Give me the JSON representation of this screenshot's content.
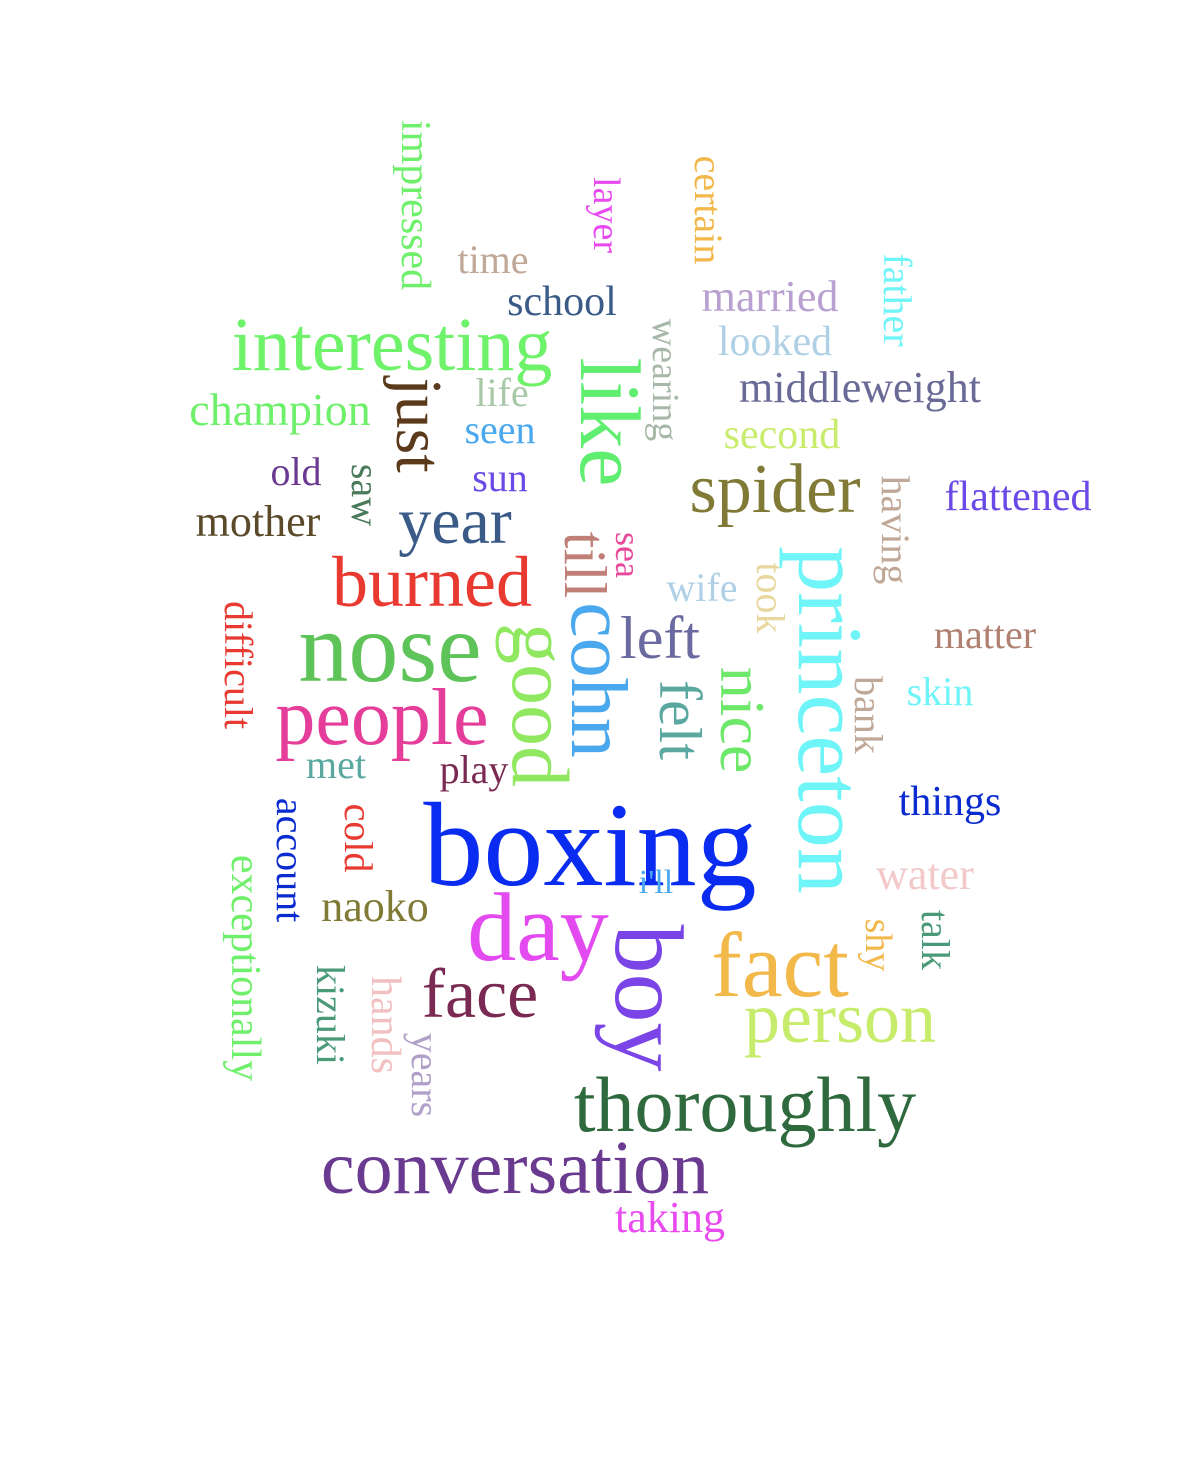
{
  "words": [
    {
      "text": "boxing",
      "color": "#0a2bf0"
    },
    {
      "text": "princeton",
      "color": "#6ff4f8"
    },
    {
      "text": "day",
      "color": "#e34af0"
    },
    {
      "text": "boy",
      "color": "#7a44e6"
    },
    {
      "text": "nose",
      "color": "#5ec45a"
    },
    {
      "text": "fact",
      "color": "#f2b84a"
    },
    {
      "text": "thoroughly",
      "color": "#2f6a3e"
    },
    {
      "text": "conversation",
      "color": "#6a3a90"
    },
    {
      "text": "person",
      "color": "#c7ec6b"
    },
    {
      "text": "people",
      "color": "#e43e9a"
    },
    {
      "text": "interesting",
      "color": "#6ef26a"
    },
    {
      "text": "like",
      "color": "#60ee70"
    },
    {
      "text": "cohn",
      "color": "#4aa8ee"
    },
    {
      "text": "good",
      "color": "#90e860"
    },
    {
      "text": "burned",
      "color": "#e83a30"
    },
    {
      "text": "spider",
      "color": "#807a36"
    },
    {
      "text": "face",
      "color": "#7a2a52"
    },
    {
      "text": "year",
      "color": "#3a5a88"
    },
    {
      "text": "just",
      "color": "#5a3a1a"
    },
    {
      "text": "nice",
      "color": "#6ee86a"
    },
    {
      "text": "felt",
      "color": "#5aa8a0"
    },
    {
      "text": "left",
      "color": "#6a6aa0"
    },
    {
      "text": "till",
      "color": "#c08078"
    },
    {
      "text": "married",
      "color": "#b8a0d0"
    },
    {
      "text": "middleweight",
      "color": "#6a6a96"
    },
    {
      "text": "champion",
      "color": "#6ef06a"
    },
    {
      "text": "impressed",
      "color": "#6ef06a"
    },
    {
      "text": "mother",
      "color": "#5a4a2a"
    },
    {
      "text": "school",
      "color": "#3a5a88"
    },
    {
      "text": "flattened",
      "color": "#6a4ae6"
    },
    {
      "text": "looked",
      "color": "#b0d0e6"
    },
    {
      "text": "exceptionally",
      "color": "#6ef06a"
    },
    {
      "text": "water",
      "color": "#f2c8c8"
    },
    {
      "text": "things",
      "color": "#0a2bd0"
    },
    {
      "text": "naoko",
      "color": "#807a36"
    },
    {
      "text": "kizuki",
      "color": "#4a9a7a"
    },
    {
      "text": "hands",
      "color": "#f2c0c0"
    },
    {
      "text": "account",
      "color": "#0a2bd0"
    },
    {
      "text": "second",
      "color": "#c8ec6b"
    },
    {
      "text": "taking",
      "color": "#e84af0"
    },
    {
      "text": "years",
      "color": "#b0a0c8"
    },
    {
      "text": "difficult",
      "color": "#e83a30"
    },
    {
      "text": "matter",
      "color": "#b08070"
    },
    {
      "text": "certain",
      "color": "#f2b84a"
    },
    {
      "text": "father",
      "color": "#6ff4f8"
    },
    {
      "text": "sun",
      "color": "#6a4ae6"
    },
    {
      "text": "seen",
      "color": "#4aa8ee"
    },
    {
      "text": "wife",
      "color": "#b0d0e6"
    },
    {
      "text": "skin",
      "color": "#6ff4f8"
    },
    {
      "text": "play",
      "color": "#7a2a52"
    },
    {
      "text": "met",
      "color": "#5aa8a0"
    },
    {
      "text": "old",
      "color": "#6a3a90"
    },
    {
      "text": "time",
      "color": "#c0a898"
    },
    {
      "text": "life",
      "color": "#a8c8a8"
    },
    {
      "text": "saw",
      "color": "#4a7a5a"
    },
    {
      "text": "took",
      "color": "#e8d8a0"
    },
    {
      "text": "bank",
      "color": "#c0a898"
    },
    {
      "text": "shy",
      "color": "#f2b84a"
    },
    {
      "text": "talk",
      "color": "#4a9a7a"
    },
    {
      "text": "having",
      "color": "#c0a898"
    },
    {
      "text": "sea",
      "color": "#e84a9a"
    },
    {
      "text": "cold",
      "color": "#e83a30"
    },
    {
      "text": "i'll",
      "color": "#4aa8ee"
    },
    {
      "text": "layer",
      "color": "#e84af0"
    },
    {
      "text": "wearing",
      "color": "#a8b8a8"
    }
  ]
}
